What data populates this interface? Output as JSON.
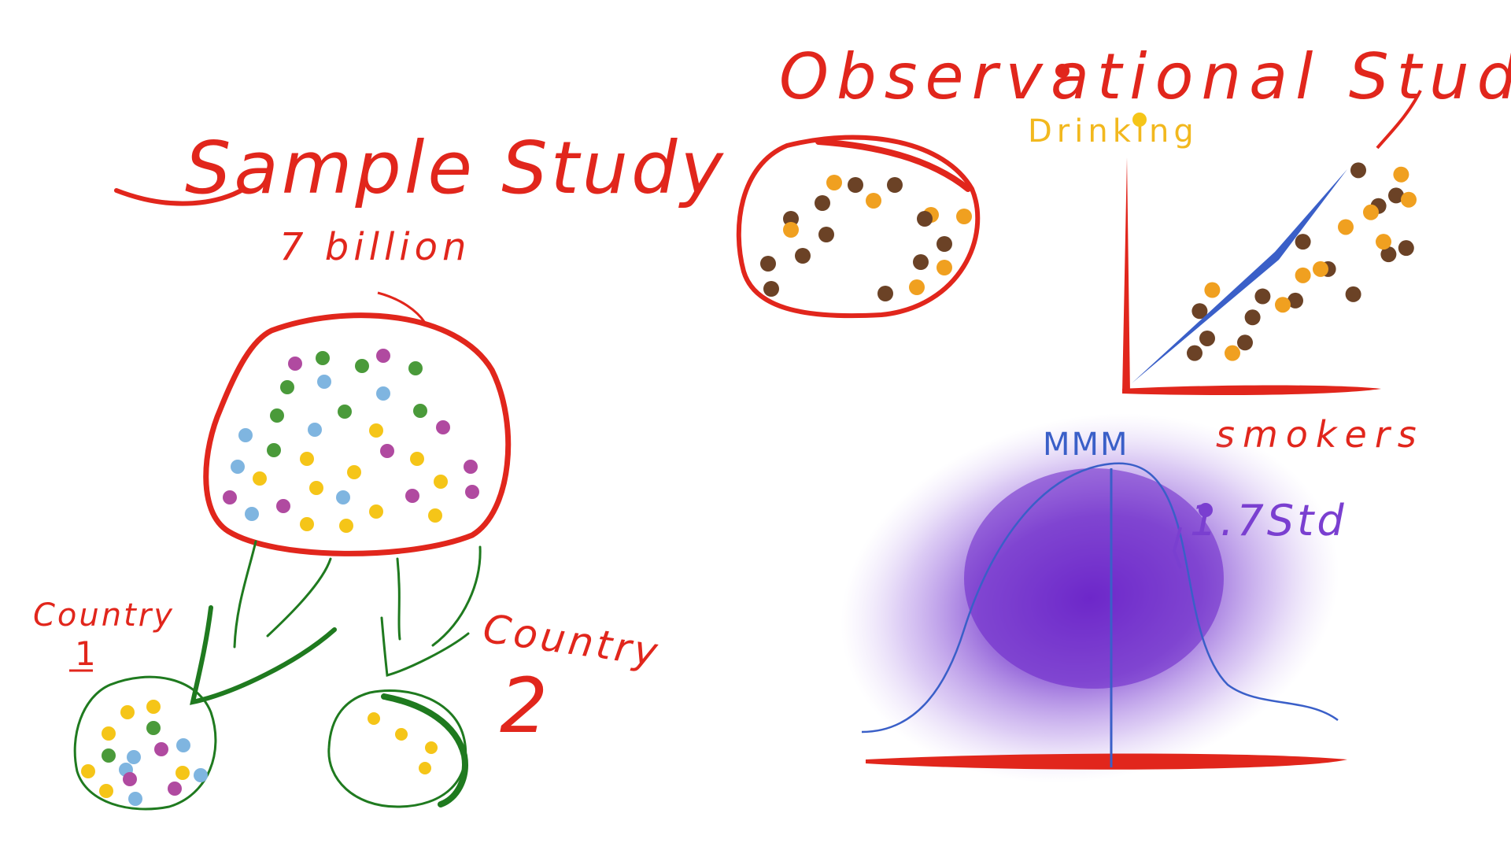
{
  "sample_study": {
    "title": "Sample Study",
    "subtitle": "7 billion",
    "country1_label": "Country",
    "country1_number": "1",
    "country2_label": "Country",
    "country2_number": "2"
  },
  "observational_study": {
    "title": "Observational Study",
    "y_label": "Drinking",
    "x_label": "smokers"
  },
  "distribution": {
    "mean_label": "MMM",
    "std_label": "1.7Std"
  },
  "colors": {
    "red": "#e1261c",
    "green": "#1f7a1f",
    "blue": "#3a5fc8",
    "purple": "#7a3fd0",
    "dot_yellow": "#f5c518",
    "dot_green": "#4a9a3a",
    "dot_blue": "#7fb5e0",
    "dot_magenta": "#b04aa0",
    "dot_orange": "#f0a020",
    "dot_brown": "#6b4226",
    "label_yellow": "#f2b81e"
  },
  "chart_data": {
    "type": "scatter",
    "title": "Observational Study",
    "xlabel": "smokers",
    "ylabel": "Drinking",
    "series": [
      {
        "values": [
          [
            0.15,
            0.05
          ],
          [
            0.2,
            0.12
          ],
          [
            0.17,
            0.25
          ],
          [
            0.35,
            0.1
          ],
          [
            0.42,
            0.32
          ],
          [
            0.38,
            0.22
          ],
          [
            0.55,
            0.3
          ],
          [
            0.58,
            0.58
          ],
          [
            0.68,
            0.45
          ],
          [
            0.78,
            0.33
          ],
          [
            0.88,
            0.75
          ],
          [
            0.92,
            0.52
          ],
          [
            0.95,
            0.8
          ],
          [
            0.8,
            0.92
          ],
          [
            0.99,
            0.55
          ]
        ]
      },
      {
        "values": [
          [
            0.22,
            0.35
          ],
          [
            0.3,
            0.05
          ],
          [
            0.5,
            0.28
          ],
          [
            0.58,
            0.42
          ],
          [
            0.75,
            0.65
          ],
          [
            0.85,
            0.72
          ],
          [
            0.9,
            0.58
          ],
          [
            1.0,
            0.78
          ],
          [
            0.97,
            0.9
          ],
          [
            0.65,
            0.45
          ]
        ]
      }
    ]
  }
}
